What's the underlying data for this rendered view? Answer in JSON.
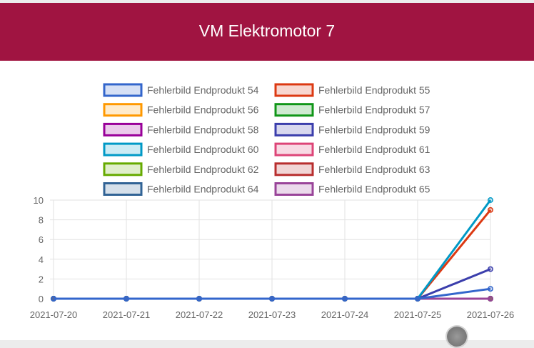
{
  "header": {
    "title": "VM Elektromotor 7"
  },
  "colors": {
    "header_bg": "#a01441",
    "header_text": "#ffffff",
    "grid": "#e2e2e2",
    "axis_text": "#666666"
  },
  "chart_data": {
    "type": "line",
    "title": "",
    "xlabel": "",
    "ylabel": "",
    "x": [
      "2021-07-20",
      "2021-07-21",
      "2021-07-22",
      "2021-07-23",
      "2021-07-24",
      "2021-07-25",
      "2021-07-26"
    ],
    "ylim": [
      0,
      10
    ],
    "yticks": [
      0,
      2,
      4,
      6,
      8,
      10
    ],
    "grid": true,
    "legend_position": "top",
    "series": [
      {
        "name": "Fehlerbild Endprodukt 54",
        "color": "#3366cc",
        "values": [
          0,
          0,
          0,
          0,
          0,
          0,
          1
        ]
      },
      {
        "name": "Fehlerbild Endprodukt 55",
        "color": "#dc3912",
        "values": [
          0,
          0,
          0,
          0,
          0,
          0,
          9
        ]
      },
      {
        "name": "Fehlerbild Endprodukt 56",
        "color": "#ff9900",
        "values": [
          0,
          0,
          0,
          0,
          0,
          0,
          0
        ]
      },
      {
        "name": "Fehlerbild Endprodukt 57",
        "color": "#109618",
        "values": [
          0,
          0,
          0,
          0,
          0,
          0,
          0
        ]
      },
      {
        "name": "Fehlerbild Endprodukt 58",
        "color": "#990099",
        "values": [
          0,
          0,
          0,
          0,
          0,
          0,
          0
        ]
      },
      {
        "name": "Fehlerbild Endprodukt 59",
        "color": "#3b3eac",
        "values": [
          0,
          0,
          0,
          0,
          0,
          0,
          3
        ]
      },
      {
        "name": "Fehlerbild Endprodukt 60",
        "color": "#0099c6",
        "values": [
          0,
          0,
          0,
          0,
          0,
          0,
          10
        ]
      },
      {
        "name": "Fehlerbild Endprodukt 61",
        "color": "#dd4477",
        "values": [
          0,
          0,
          0,
          0,
          0,
          0,
          0
        ]
      },
      {
        "name": "Fehlerbild Endprodukt 62",
        "color": "#66aa00",
        "values": [
          0,
          0,
          0,
          0,
          0,
          0,
          0
        ]
      },
      {
        "name": "Fehlerbild Endprodukt 63",
        "color": "#b82e2e",
        "values": [
          0,
          0,
          0,
          0,
          0,
          0,
          0
        ]
      },
      {
        "name": "Fehlerbild Endprodukt 64",
        "color": "#316395",
        "values": [
          0,
          0,
          0,
          0,
          0,
          0,
          0
        ]
      },
      {
        "name": "Fehlerbild Endprodukt 65",
        "color": "#994499",
        "values": [
          0,
          0,
          0,
          0,
          0,
          0,
          0
        ]
      }
    ]
  }
}
